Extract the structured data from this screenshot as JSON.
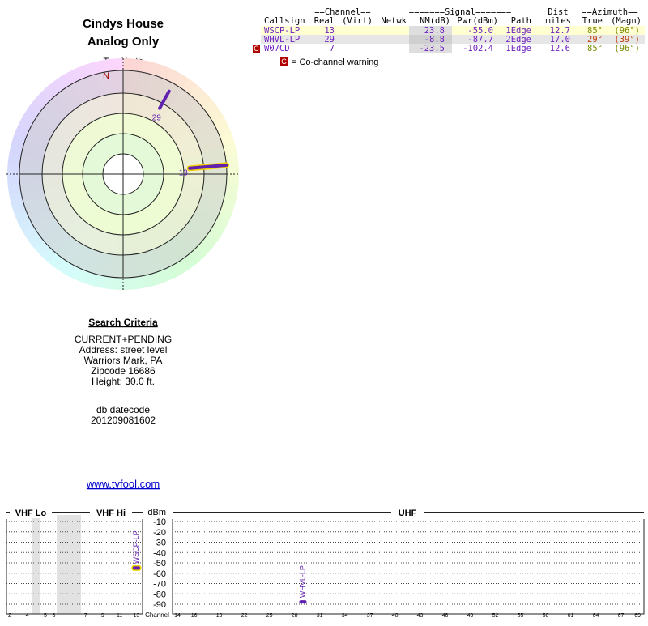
{
  "header": {
    "title": "Cindys House",
    "subtitle": "Analog Only"
  },
  "radar": {
    "north_label": "TrueNorth",
    "n": "N"
  },
  "table": {
    "group_headers": [
      "==Channel==",
      "=======Signal=======",
      "Dist",
      "==Azimuth=="
    ],
    "columns": [
      "Callsign",
      "Real",
      "(Virt)",
      "Netwk",
      "NM(dB)",
      "Pwr(dBm)",
      "Path",
      "miles",
      "True",
      "(Magn)"
    ],
    "rows": [
      {
        "callsign": "WSCP-LP",
        "real": "13",
        "nm": "23.8",
        "pwr": "-55.0",
        "path": "1Edge",
        "miles": "12.7",
        "true": "85°",
        "magn": "(96°)"
      },
      {
        "callsign": "WHVL-LP",
        "real": "29",
        "nm": "-8.8",
        "pwr": "-87.7",
        "path": "2Edge",
        "miles": "17.0",
        "true": "29°",
        "magn": "(39°)"
      },
      {
        "callsign": "W07CD",
        "real": "7",
        "nm": "-23.5",
        "pwr": "-102.4",
        "path": "1Edge",
        "miles": "12.6",
        "true": "85°",
        "magn": "(96°)",
        "warning": "C"
      }
    ],
    "legend": {
      "mark": "C",
      "text": "= Co-channel warning"
    }
  },
  "criteria": {
    "title": "Search Criteria",
    "lines": [
      "CURRENT+PENDING",
      "Address: street level",
      "Warriors Mark, PA",
      "Zipcode 16686",
      "Height: 30.0 ft."
    ],
    "db_label": "db datecode",
    "db_value": "201209081602",
    "link": "www.tvfool.com"
  },
  "spectrum": {
    "vhf_lo": "VHF Lo",
    "vhf_hi": "VHF Hi",
    "uhf": "UHF",
    "y_label": "dBm",
    "x_label": "Channel",
    "yticks": [
      -10,
      -20,
      -30,
      -40,
      -50,
      -60,
      -70,
      -80,
      -90
    ],
    "vhf_channels": [
      2,
      4,
      5,
      6,
      7,
      9,
      11,
      13
    ],
    "uhf_channels": [
      14,
      16,
      19,
      22,
      25,
      28,
      31,
      34,
      37,
      40,
      43,
      46,
      49,
      52,
      55,
      58,
      61,
      64,
      67,
      69
    ]
  }
}
